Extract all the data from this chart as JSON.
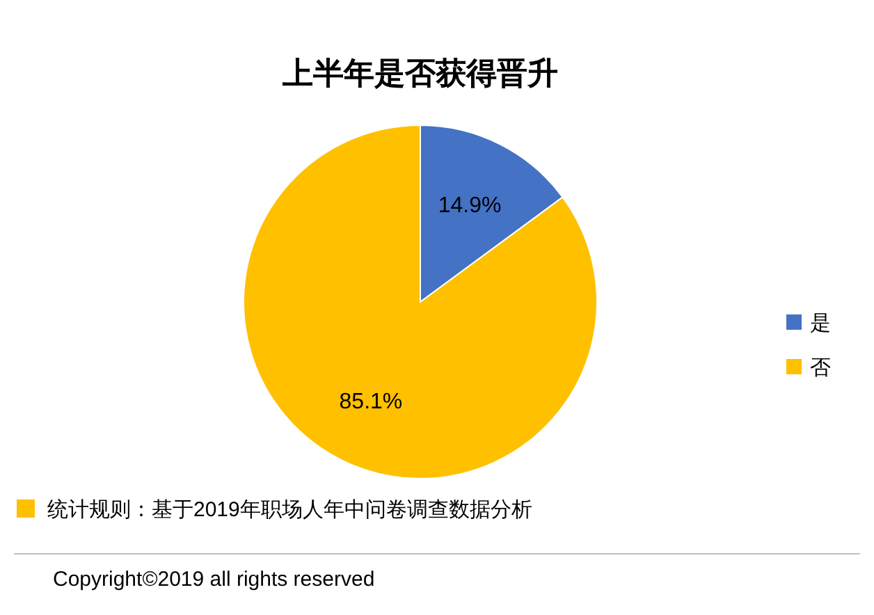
{
  "chart_data": {
    "type": "pie",
    "title": "上半年是否获得晋升",
    "categories": [
      "是",
      "否"
    ],
    "values": [
      14.9,
      85.1
    ],
    "value_labels": [
      "14.9%",
      "85.1%"
    ],
    "colors": [
      "#4472c4",
      "#ffc000"
    ],
    "legend": "right",
    "annotations": [
      "统计规则：基于2019年职场人年中问卷调查数据分析",
      "Copyright©2019 all rights reserved"
    ]
  }
}
